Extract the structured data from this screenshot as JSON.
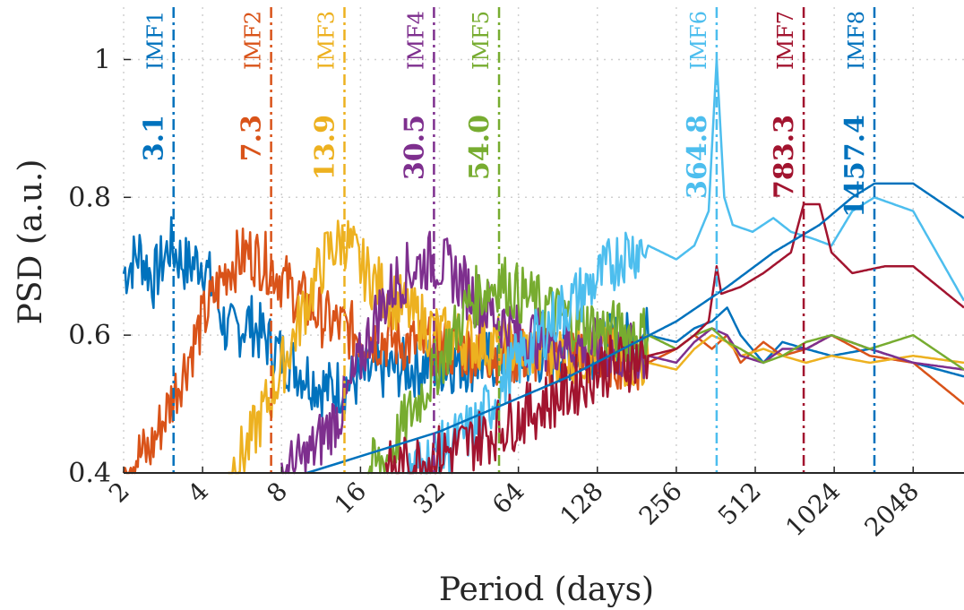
{
  "chart_data": {
    "type": "line",
    "title": "",
    "xlabel": "Period (days)",
    "ylabel": "PSD (a.u.)",
    "x_scale": "log2",
    "xlim": [
      2,
      3200
    ],
    "ylim": [
      0.4,
      1.05
    ],
    "x_ticks": [
      2,
      4,
      8,
      16,
      32,
      64,
      128,
      256,
      512,
      1024,
      2048
    ],
    "x_tick_labels": [
      "2",
      "4",
      "8",
      "16",
      "32",
      "64",
      "128",
      "256",
      "512",
      "1024",
      "2048"
    ],
    "y_ticks": [
      0.4,
      0.6,
      0.8,
      1
    ],
    "y_tick_labels": [
      "0.4",
      "0.6",
      "0.8",
      "1"
    ],
    "grid": true,
    "imf_markers": [
      {
        "label": "IMF1",
        "period": 3.1,
        "value_label": "3.1",
        "color": "#0072BD"
      },
      {
        "label": "IMF2",
        "period": 7.3,
        "value_label": "7.3",
        "color": "#D95319"
      },
      {
        "label": "IMF3",
        "period": 13.9,
        "value_label": "13.9",
        "color": "#EDB120"
      },
      {
        "label": "IMF4",
        "period": 30.5,
        "value_label": "30.5",
        "color": "#7E2F8E"
      },
      {
        "label": "IMF5",
        "period": 54.0,
        "value_label": "54.0",
        "color": "#77AC30"
      },
      {
        "label": "IMF6",
        "period": 364.8,
        "value_label": "364.8",
        "color": "#4DBEEE"
      },
      {
        "label": "IMF7",
        "period": 783.3,
        "value_label": "783.3",
        "color": "#A2142F"
      },
      {
        "label": "IMF8",
        "period": 1457.4,
        "value_label": "1457.4",
        "color": "#0072BD"
      }
    ],
    "series": [
      {
        "color": "#0072BD",
        "points": [
          [
            2,
            0.69
          ],
          [
            2.3,
            0.72
          ],
          [
            2.6,
            0.68
          ],
          [
            3.0,
            0.73
          ],
          [
            3.5,
            0.7
          ],
          [
            4,
            0.71
          ],
          [
            5,
            0.6
          ],
          [
            6,
            0.62
          ],
          [
            8,
            0.57
          ],
          [
            12,
            0.52
          ],
          [
            20,
            0.55
          ],
          [
            40,
            0.56
          ],
          [
            80,
            0.57
          ],
          [
            120,
            0.58
          ],
          [
            160,
            0.59
          ],
          [
            200,
            0.6
          ],
          [
            256,
            0.59
          ],
          [
            300,
            0.61
          ],
          [
            350,
            0.62
          ],
          [
            400,
            0.64
          ],
          [
            450,
            0.6
          ],
          [
            550,
            0.56
          ],
          [
            650,
            0.59
          ],
          [
            800,
            0.58
          ],
          [
            1000,
            0.57
          ],
          [
            1400,
            0.58
          ],
          [
            2048,
            0.56
          ],
          [
            3200,
            0.54
          ]
        ]
      },
      {
        "color": "#D95319",
        "points": [
          [
            2,
            0.42
          ],
          [
            2.5,
            0.43
          ],
          [
            3,
            0.5
          ],
          [
            4,
            0.62
          ],
          [
            5,
            0.7
          ],
          [
            6,
            0.72
          ],
          [
            7.3,
            0.7
          ],
          [
            9,
            0.66
          ],
          [
            12,
            0.62
          ],
          [
            16,
            0.6
          ],
          [
            32,
            0.58
          ],
          [
            64,
            0.57
          ],
          [
            128,
            0.57
          ],
          [
            200,
            0.56
          ],
          [
            256,
            0.58
          ],
          [
            300,
            0.6
          ],
          [
            350,
            0.58
          ],
          [
            400,
            0.6
          ],
          [
            450,
            0.56
          ],
          [
            550,
            0.59
          ],
          [
            650,
            0.57
          ],
          [
            800,
            0.58
          ],
          [
            1000,
            0.6
          ],
          [
            1400,
            0.57
          ],
          [
            2048,
            0.56
          ],
          [
            3200,
            0.5
          ]
        ]
      },
      {
        "color": "#EDB120",
        "points": [
          [
            5,
            0.4
          ],
          [
            6,
            0.44
          ],
          [
            8,
            0.55
          ],
          [
            10,
            0.65
          ],
          [
            12,
            0.72
          ],
          [
            14,
            0.74
          ],
          [
            16,
            0.7
          ],
          [
            20,
            0.66
          ],
          [
            32,
            0.6
          ],
          [
            64,
            0.58
          ],
          [
            128,
            0.57
          ],
          [
            200,
            0.56
          ],
          [
            256,
            0.55
          ],
          [
            300,
            0.58
          ],
          [
            350,
            0.6
          ],
          [
            400,
            0.59
          ],
          [
            450,
            0.57
          ],
          [
            550,
            0.58
          ],
          [
            650,
            0.57
          ],
          [
            800,
            0.56
          ],
          [
            1000,
            0.57
          ],
          [
            1400,
            0.56
          ],
          [
            2048,
            0.57
          ],
          [
            3200,
            0.56
          ]
        ]
      },
      {
        "color": "#7E2F8E",
        "points": [
          [
            8,
            0.4
          ],
          [
            10,
            0.42
          ],
          [
            14,
            0.5
          ],
          [
            18,
            0.62
          ],
          [
            22,
            0.68
          ],
          [
            26,
            0.7
          ],
          [
            30.5,
            0.71
          ],
          [
            36,
            0.69
          ],
          [
            45,
            0.65
          ],
          [
            64,
            0.6
          ],
          [
            128,
            0.58
          ],
          [
            200,
            0.57
          ],
          [
            256,
            0.56
          ],
          [
            300,
            0.59
          ],
          [
            350,
            0.61
          ],
          [
            400,
            0.6
          ],
          [
            450,
            0.57
          ],
          [
            550,
            0.56
          ],
          [
            650,
            0.58
          ],
          [
            800,
            0.58
          ],
          [
            1000,
            0.6
          ],
          [
            1400,
            0.58
          ],
          [
            2048,
            0.56
          ],
          [
            3200,
            0.55
          ]
        ]
      },
      {
        "color": "#77AC30",
        "points": [
          [
            17,
            0.4
          ],
          [
            20,
            0.42
          ],
          [
            26,
            0.5
          ],
          [
            34,
            0.58
          ],
          [
            42,
            0.65
          ],
          [
            54,
            0.68
          ],
          [
            64,
            0.66
          ],
          [
            90,
            0.63
          ],
          [
            128,
            0.61
          ],
          [
            200,
            0.6
          ],
          [
            256,
            0.58
          ],
          [
            300,
            0.6
          ],
          [
            350,
            0.61
          ],
          [
            400,
            0.59
          ],
          [
            450,
            0.58
          ],
          [
            550,
            0.56
          ],
          [
            650,
            0.57
          ],
          [
            800,
            0.59
          ],
          [
            1000,
            0.6
          ],
          [
            1400,
            0.58
          ],
          [
            2048,
            0.6
          ],
          [
            3200,
            0.55
          ]
        ]
      },
      {
        "color": "#4DBEEE",
        "points": [
          [
            24,
            0.4
          ],
          [
            30,
            0.42
          ],
          [
            45,
            0.47
          ],
          [
            60,
            0.55
          ],
          [
            90,
            0.63
          ],
          [
            128,
            0.68
          ],
          [
            160,
            0.72
          ],
          [
            200,
            0.73
          ],
          [
            256,
            0.71
          ],
          [
            300,
            0.73
          ],
          [
            340,
            0.78
          ],
          [
            364.8,
            1.0
          ],
          [
            390,
            0.8
          ],
          [
            420,
            0.76
          ],
          [
            500,
            0.75
          ],
          [
            600,
            0.77
          ],
          [
            700,
            0.75
          ],
          [
            850,
            0.74
          ],
          [
            1000,
            0.73
          ],
          [
            1200,
            0.78
          ],
          [
            1457.4,
            0.8
          ],
          [
            2048,
            0.78
          ],
          [
            3200,
            0.65
          ]
        ]
      },
      {
        "color": "#A2142F",
        "points": [
          [
            20,
            0.4
          ],
          [
            40,
            0.44
          ],
          [
            64,
            0.48
          ],
          [
            100,
            0.52
          ],
          [
            128,
            0.55
          ],
          [
            200,
            0.57
          ],
          [
            256,
            0.58
          ],
          [
            300,
            0.6
          ],
          [
            340,
            0.62
          ],
          [
            364.8,
            0.7
          ],
          [
            380,
            0.66
          ],
          [
            450,
            0.67
          ],
          [
            550,
            0.69
          ],
          [
            700,
            0.72
          ],
          [
            783.3,
            0.79
          ],
          [
            900,
            0.79
          ],
          [
            1000,
            0.72
          ],
          [
            1200,
            0.69
          ],
          [
            1600,
            0.7
          ],
          [
            2048,
            0.7
          ],
          [
            3200,
            0.64
          ]
        ]
      },
      {
        "color": "#0072BD",
        "points": [
          [
            10,
            0.4
          ],
          [
            32,
            0.46
          ],
          [
            100,
            0.54
          ],
          [
            256,
            0.62
          ],
          [
            400,
            0.67
          ],
          [
            600,
            0.72
          ],
          [
            900,
            0.76
          ],
          [
            1200,
            0.8
          ],
          [
            1457.4,
            0.82
          ],
          [
            2048,
            0.82
          ],
          [
            3200,
            0.77
          ]
        ]
      }
    ]
  }
}
